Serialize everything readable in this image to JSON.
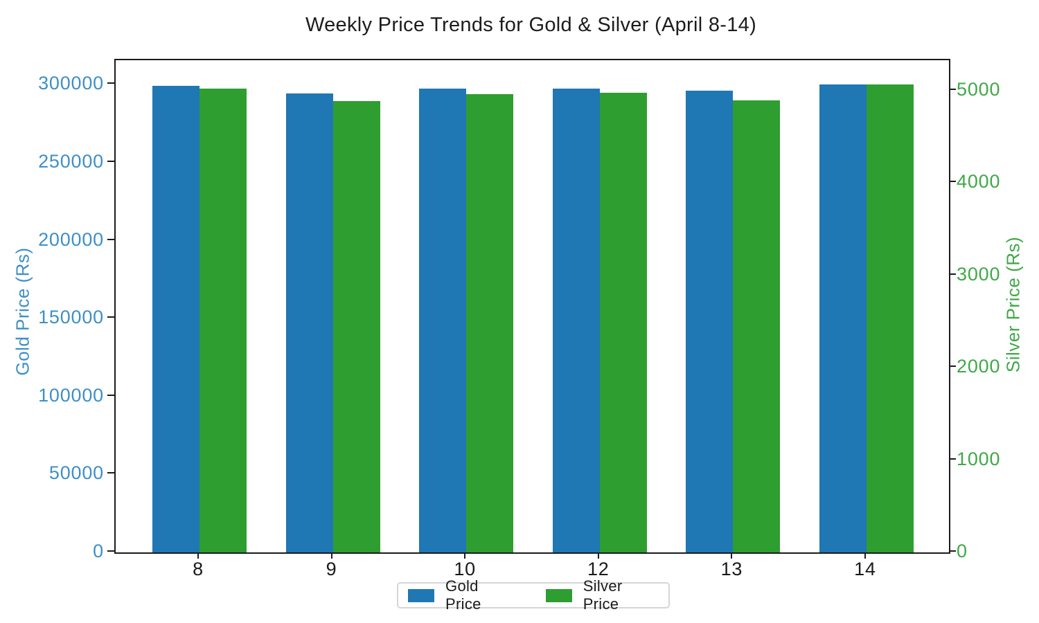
{
  "title": "Weekly Price Trends for Gold & Silver (April 8-14)",
  "chart_data": {
    "type": "bar",
    "categories": [
      "8",
      "9",
      "10",
      "12",
      "13",
      "14"
    ],
    "series": [
      {
        "name": "Gold Price",
        "axis": "left",
        "color": "#1f77b4",
        "values": [
          299300,
          294400,
          297500,
          297500,
          296300,
          300000
        ]
      },
      {
        "name": "Silver Price",
        "axis": "right",
        "color": "#2e9e30",
        "values": [
          5020,
          4885,
          4965,
          4975,
          4895,
          5070
        ]
      }
    ],
    "left_axis": {
      "label": "Gold Price (Rs)",
      "ticks": [
        0,
        50000,
        100000,
        150000,
        200000,
        250000,
        300000
      ],
      "range": [
        0,
        315700
      ],
      "color": "#3e8fc7"
    },
    "right_axis": {
      "label": "Silver Price (Rs)",
      "ticks": [
        0,
        1000,
        2000,
        3000,
        4000,
        5000
      ],
      "range": [
        0,
        5330
      ],
      "color": "#3fa847"
    },
    "legend": {
      "position": "bottom-center",
      "entries": [
        "Gold Price",
        "Silver Price"
      ]
    },
    "grid": false,
    "background": "#ffffff"
  }
}
